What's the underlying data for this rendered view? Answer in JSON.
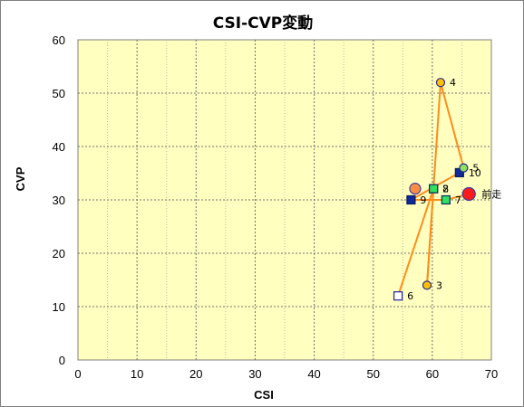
{
  "chart_data": {
    "type": "scatter",
    "title": "CSI-CVP変動",
    "xlabel": "CSI",
    "ylabel": "CVP",
    "xlim": [
      0,
      70
    ],
    "ylim": [
      0,
      60
    ],
    "xticks": [
      0,
      10,
      20,
      30,
      40,
      50,
      60,
      70
    ],
    "yticks": [
      0,
      10,
      20,
      30,
      40,
      50,
      60
    ],
    "minor_x_step": 5,
    "grid": true,
    "plot_background": "#ffffc0",
    "line_color": "#ff8c1a",
    "path_order": [
      "前走",
      "7",
      "9",
      "10",
      "5",
      "4",
      "3",
      "2",
      "8",
      "6"
    ],
    "points": [
      {
        "label": "前走",
        "x": 66.2,
        "y": 31.1,
        "marker": "circle-red-large"
      },
      {
        "label": "2",
        "x": 60.2,
        "y": 32.1,
        "marker": "square-green"
      },
      {
        "label": "3",
        "x": 59.1,
        "y": 14.0,
        "marker": "circle-gold"
      },
      {
        "label": "4",
        "x": 61.4,
        "y": 52.0,
        "marker": "circle-gold"
      },
      {
        "label": "5",
        "x": 65.3,
        "y": 36.0,
        "marker": "circle-green"
      },
      {
        "label": "6",
        "x": 54.2,
        "y": 12.0,
        "marker": "square-white"
      },
      {
        "label": "7",
        "x": 62.3,
        "y": 30.0,
        "marker": "square-green"
      },
      {
        "label": "8",
        "x": 60.2,
        "y": 32.1,
        "marker": "square-blue"
      },
      {
        "label": "9",
        "x": 56.4,
        "y": 30.0,
        "marker": "square-blue"
      },
      {
        "label": "10",
        "x": 64.6,
        "y": 35.1,
        "marker": "square-blue"
      },
      {
        "label": "",
        "x": 57.1,
        "y": 32.1,
        "marker": "circle-orange"
      }
    ]
  }
}
